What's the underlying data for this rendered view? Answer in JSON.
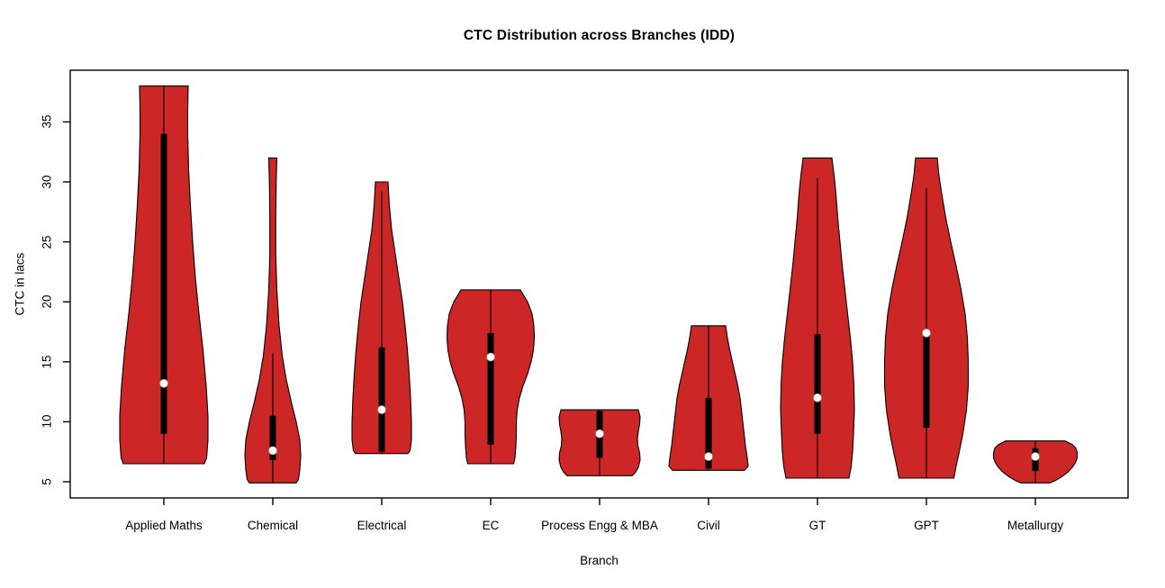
{
  "title": "CTC Distribution across Branches (IDD)",
  "colors": {
    "violin_fill": "#CD2626",
    "violin_stroke": "#000000",
    "box_fill": "#000000",
    "median_dot": "#FFFFFF",
    "axis": "#000000",
    "text": "#000000",
    "background": "#FFFFFF"
  },
  "chart_data": {
    "type": "violin",
    "title": "CTC Distribution across Branches (IDD)",
    "xlabel": "Branch",
    "ylabel": "CTC in lacs",
    "yticks": [
      5,
      10,
      15,
      20,
      25,
      30,
      35
    ],
    "ylim": [
      3.6,
      39.3
    ],
    "grid": false,
    "legend": "none",
    "categories": [
      "Applied Maths",
      "Chemical",
      "Electrical",
      "EC",
      "Process Engg & MBA",
      "Civil",
      "GT",
      "GPT",
      "Metallurgy"
    ],
    "series": [
      {
        "name": "Applied Maths",
        "min": 6.5,
        "max": 38,
        "q1": 9,
        "median": 13.2,
        "q3": 34,
        "whisker_low": 6.5,
        "whisker_high": 38,
        "outline": [
          [
            38,
            27
          ],
          [
            36,
            26.5
          ],
          [
            34,
            26.5
          ],
          [
            31,
            27.5
          ],
          [
            28,
            29.5
          ],
          [
            25,
            32
          ],
          [
            22,
            35
          ],
          [
            19,
            39
          ],
          [
            16,
            43.5
          ],
          [
            13,
            47
          ],
          [
            10.5,
            49
          ],
          [
            8.5,
            49
          ],
          [
            7,
            47.5
          ],
          [
            6.5,
            45
          ]
        ]
      },
      {
        "name": "Chemical",
        "min": 4.9,
        "max": 32,
        "q1": 6.8,
        "median": 7.6,
        "q3": 10.5,
        "whisker_low": 4.9,
        "whisker_high": 15.7,
        "outline": [
          [
            32,
            4.5
          ],
          [
            30,
            3.8
          ],
          [
            27,
            3.3
          ],
          [
            24,
            3.3
          ],
          [
            21,
            4.5
          ],
          [
            18,
            7
          ],
          [
            15.5,
            10.5
          ],
          [
            13.5,
            15
          ],
          [
            11.5,
            21
          ],
          [
            10,
            26
          ],
          [
            8.5,
            30
          ],
          [
            7.2,
            31
          ],
          [
            6,
            30
          ],
          [
            5.2,
            28.5
          ],
          [
            4.9,
            26
          ]
        ]
      },
      {
        "name": "Electrical",
        "min": 7.35,
        "max": 30,
        "q1": 7.5,
        "median": 11,
        "q3": 16.2,
        "whisker_low": 7.35,
        "whisker_high": 29.2,
        "outline": [
          [
            30,
            7
          ],
          [
            28,
            8.5
          ],
          [
            26,
            11
          ],
          [
            24,
            15
          ],
          [
            22,
            19
          ],
          [
            20,
            23
          ],
          [
            18,
            26
          ],
          [
            16,
            28.5
          ],
          [
            14,
            30.5
          ],
          [
            12,
            32
          ],
          [
            10,
            33
          ],
          [
            8.5,
            33
          ],
          [
            7.6,
            31.5
          ],
          [
            7.35,
            29
          ]
        ]
      },
      {
        "name": "EC",
        "min": 6.5,
        "max": 21,
        "q1": 8.1,
        "median": 15.4,
        "q3": 17.4,
        "whisker_low": 6.5,
        "whisker_high": 21,
        "outline": [
          [
            21,
            33
          ],
          [
            20,
            41
          ],
          [
            19,
            46
          ],
          [
            18,
            48
          ],
          [
            17,
            48.5
          ],
          [
            16,
            47.5
          ],
          [
            15,
            45
          ],
          [
            14,
            41
          ],
          [
            13,
            36
          ],
          [
            12,
            32
          ],
          [
            11,
            29.5
          ],
          [
            10,
            28.5
          ],
          [
            9,
            28.5
          ],
          [
            8,
            28
          ],
          [
            7,
            27
          ],
          [
            6.5,
            25.5
          ]
        ]
      },
      {
        "name": "Process Engg & MBA",
        "min": 5.5,
        "max": 11,
        "q1": 7,
        "median": 9,
        "q3": 10.9,
        "whisker_low": 5.5,
        "whisker_high": 11,
        "outline": [
          [
            11,
            43
          ],
          [
            10.4,
            45
          ],
          [
            9.8,
            44.5
          ],
          [
            9.2,
            43
          ],
          [
            8.6,
            42
          ],
          [
            8,
            42.5
          ],
          [
            7.4,
            44.5
          ],
          [
            6.8,
            45
          ],
          [
            6.2,
            43
          ],
          [
            5.8,
            40
          ],
          [
            5.5,
            36
          ]
        ]
      },
      {
        "name": "Civil",
        "min": 5.95,
        "max": 18,
        "q1": 6.1,
        "median": 7.1,
        "q3": 12,
        "whisker_low": 5.95,
        "whisker_high": 18,
        "outline": [
          [
            18,
            19
          ],
          [
            17,
            21
          ],
          [
            16,
            23.5
          ],
          [
            15,
            26.5
          ],
          [
            14,
            29.5
          ],
          [
            13,
            32.5
          ],
          [
            12,
            35
          ],
          [
            11,
            36.5
          ],
          [
            10,
            38
          ],
          [
            9,
            39.5
          ],
          [
            8,
            41
          ],
          [
            7,
            43
          ],
          [
            6.3,
            44
          ],
          [
            5.95,
            40
          ]
        ]
      },
      {
        "name": "GT",
        "min": 5.3,
        "max": 32,
        "q1": 9,
        "median": 12,
        "q3": 17.3,
        "whisker_low": 5.3,
        "whisker_high": 30.3,
        "outline": [
          [
            32,
            16
          ],
          [
            30.5,
            18.5
          ],
          [
            29,
            20.5
          ],
          [
            27,
            22.5
          ],
          [
            25,
            25
          ],
          [
            23,
            27.5
          ],
          [
            21,
            30.5
          ],
          [
            19,
            33.5
          ],
          [
            17,
            36.5
          ],
          [
            15,
            39
          ],
          [
            13,
            40.5
          ],
          [
            11,
            41
          ],
          [
            9,
            40
          ],
          [
            7.5,
            39
          ],
          [
            6.3,
            37.5
          ],
          [
            5.3,
            35
          ]
        ]
      },
      {
        "name": "GPT",
        "min": 5.3,
        "max": 32,
        "q1": 9.5,
        "median": 17.4,
        "q3": 17.4,
        "whisker_low": 5.3,
        "whisker_high": 29.5,
        "outline": [
          [
            32,
            12
          ],
          [
            30.5,
            14
          ],
          [
            29,
            17
          ],
          [
            27,
            21.5
          ],
          [
            25,
            27
          ],
          [
            23,
            33
          ],
          [
            21,
            38.5
          ],
          [
            19,
            43
          ],
          [
            17,
            45.5
          ],
          [
            15,
            46.5
          ],
          [
            13,
            46.5
          ],
          [
            11,
            44.5
          ],
          [
            9,
            40.5
          ],
          [
            7.5,
            36.5
          ],
          [
            6.3,
            33
          ],
          [
            5.3,
            30.5
          ]
        ]
      },
      {
        "name": "Metallurgy",
        "min": 4.9,
        "max": 8.4,
        "q1": 5.9,
        "median": 7.1,
        "q3": 7.8,
        "whisker_low": 4.9,
        "whisker_high": 8.4,
        "outline": [
          [
            8.4,
            33
          ],
          [
            8.1,
            41
          ],
          [
            7.8,
            45
          ],
          [
            7.4,
            46.5
          ],
          [
            7,
            46.5
          ],
          [
            6.6,
            44.5
          ],
          [
            6.2,
            41
          ],
          [
            5.8,
            36
          ],
          [
            5.4,
            29
          ],
          [
            5.1,
            22
          ],
          [
            4.9,
            16
          ]
        ]
      }
    ]
  }
}
